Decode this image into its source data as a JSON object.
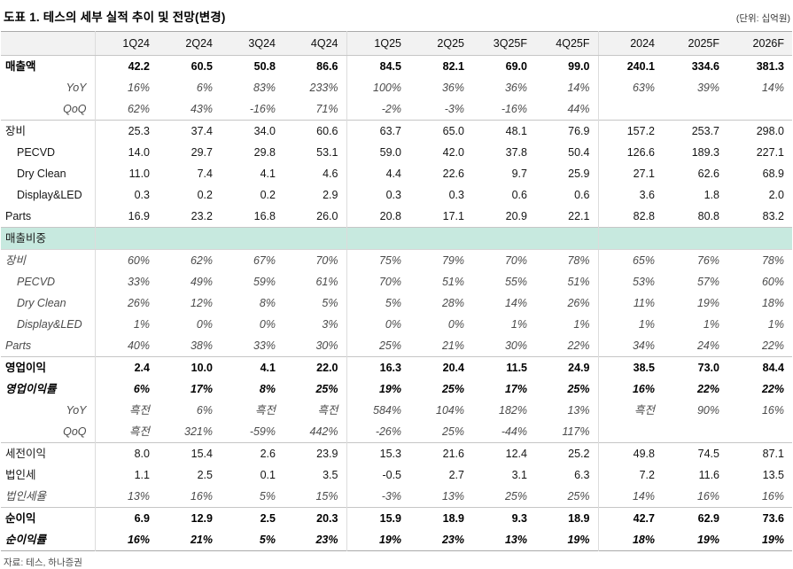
{
  "title": "도표 1. 테스의 세부 실적 추이 및 전망(변경)",
  "unit_note": "(단위: 십억원)",
  "source": "자료: 테스, 하나증권",
  "colors": {
    "section_band": "#c7e9df",
    "header_bg": "#f2f2f2"
  },
  "table": {
    "columns": [
      "1Q24",
      "2Q24",
      "3Q24",
      "4Q24",
      "1Q25",
      "2Q25",
      "3Q25F",
      "4Q25F",
      "2024",
      "2025F",
      "2026F"
    ],
    "rows": [
      {
        "name": "revenue",
        "label": "매출액",
        "kind": "main-bold",
        "section_start": false,
        "values": [
          "42.2",
          "60.5",
          "50.8",
          "86.6",
          "84.5",
          "82.1",
          "69.0",
          "99.0",
          "240.1",
          "334.6",
          "381.3"
        ]
      },
      {
        "name": "revenue-yoy",
        "label": "YoY",
        "kind": "growth",
        "section_start": false,
        "values": [
          "16%",
          "6%",
          "83%",
          "233%",
          "100%",
          "36%",
          "36%",
          "14%",
          "63%",
          "39%",
          "14%"
        ]
      },
      {
        "name": "revenue-qoq",
        "label": "QoQ",
        "kind": "growth",
        "section_start": false,
        "values": [
          "62%",
          "43%",
          "-16%",
          "71%",
          "-2%",
          "-3%",
          "-16%",
          "44%",
          "",
          "",
          ""
        ]
      },
      {
        "name": "equipment",
        "label": "장비",
        "kind": "plain",
        "section_start": true,
        "values": [
          "25.3",
          "37.4",
          "34.0",
          "60.6",
          "63.7",
          "65.0",
          "48.1",
          "76.9",
          "157.2",
          "253.7",
          "298.0"
        ]
      },
      {
        "name": "pecvd",
        "label": "PECVD",
        "kind": "plain-indent",
        "section_start": false,
        "values": [
          "14.0",
          "29.7",
          "29.8",
          "53.1",
          "59.0",
          "42.0",
          "37.8",
          "50.4",
          "126.6",
          "189.3",
          "227.1"
        ]
      },
      {
        "name": "dry-clean",
        "label": "Dry Clean",
        "kind": "plain-indent",
        "section_start": false,
        "values": [
          "11.0",
          "7.4",
          "4.1",
          "4.6",
          "4.4",
          "22.6",
          "9.7",
          "25.9",
          "27.1",
          "62.6",
          "68.9"
        ]
      },
      {
        "name": "display-led",
        "label": "Display&LED",
        "kind": "plain-indent",
        "section_start": false,
        "values": [
          "0.3",
          "0.2",
          "0.2",
          "2.9",
          "0.3",
          "0.3",
          "0.6",
          "0.6",
          "3.6",
          "1.8",
          "2.0"
        ]
      },
      {
        "name": "parts",
        "label": "Parts",
        "kind": "plain",
        "section_start": false,
        "values": [
          "16.9",
          "23.2",
          "16.8",
          "26.0",
          "20.8",
          "17.1",
          "20.9",
          "22.1",
          "82.8",
          "80.8",
          "83.2"
        ]
      },
      {
        "name": "sales-mix-section",
        "label": "매출비중",
        "kind": "section",
        "section_start": true,
        "values": [
          "",
          "",
          "",
          "",
          "",
          "",
          "",
          "",
          "",
          "",
          ""
        ]
      },
      {
        "name": "mix-equipment",
        "label": "장비",
        "kind": "pct",
        "section_start": false,
        "values": [
          "60%",
          "62%",
          "67%",
          "70%",
          "75%",
          "79%",
          "70%",
          "78%",
          "65%",
          "76%",
          "78%"
        ]
      },
      {
        "name": "mix-pecvd",
        "label": "PECVD",
        "kind": "pct-indent",
        "section_start": false,
        "values": [
          "33%",
          "49%",
          "59%",
          "61%",
          "70%",
          "51%",
          "55%",
          "51%",
          "53%",
          "57%",
          "60%"
        ]
      },
      {
        "name": "mix-dry-clean",
        "label": "Dry Clean",
        "kind": "pct-indent",
        "section_start": false,
        "values": [
          "26%",
          "12%",
          "8%",
          "5%",
          "5%",
          "28%",
          "14%",
          "26%",
          "11%",
          "19%",
          "18%"
        ]
      },
      {
        "name": "mix-display-led",
        "label": "Display&LED",
        "kind": "pct-indent",
        "section_start": false,
        "values": [
          "1%",
          "0%",
          "0%",
          "3%",
          "0%",
          "0%",
          "1%",
          "1%",
          "1%",
          "1%",
          "1%"
        ]
      },
      {
        "name": "mix-parts",
        "label": "Parts",
        "kind": "pct",
        "section_start": false,
        "values": [
          "40%",
          "38%",
          "33%",
          "30%",
          "25%",
          "21%",
          "30%",
          "22%",
          "34%",
          "24%",
          "22%"
        ]
      },
      {
        "name": "operating-profit",
        "label": "영업이익",
        "kind": "main-bold",
        "section_start": true,
        "values": [
          "2.4",
          "10.0",
          "4.1",
          "22.0",
          "16.3",
          "20.4",
          "11.5",
          "24.9",
          "38.5",
          "73.0",
          "84.4"
        ]
      },
      {
        "name": "operating-margin",
        "label": "영업이익률",
        "kind": "ratio-bold",
        "section_start": false,
        "values": [
          "6%",
          "17%",
          "8%",
          "25%",
          "19%",
          "25%",
          "17%",
          "25%",
          "16%",
          "22%",
          "22%"
        ]
      },
      {
        "name": "op-yoy",
        "label": "YoY",
        "kind": "growth",
        "section_start": false,
        "values": [
          "흑전",
          "6%",
          "흑전",
          "흑전",
          "584%",
          "104%",
          "182%",
          "13%",
          "흑전",
          "90%",
          "16%"
        ]
      },
      {
        "name": "op-qoq",
        "label": "QoQ",
        "kind": "growth",
        "section_start": false,
        "values": [
          "흑전",
          "321%",
          "-59%",
          "442%",
          "-26%",
          "25%",
          "-44%",
          "117%",
          "",
          "",
          ""
        ]
      },
      {
        "name": "pretax-profit",
        "label": "세전이익",
        "kind": "plain",
        "section_start": true,
        "values": [
          "8.0",
          "15.4",
          "2.6",
          "23.9",
          "15.3",
          "21.6",
          "12.4",
          "25.2",
          "49.8",
          "74.5",
          "87.1"
        ]
      },
      {
        "name": "income-tax",
        "label": "법인세",
        "kind": "plain",
        "section_start": false,
        "values": [
          "1.1",
          "2.5",
          "0.1",
          "3.5",
          "-0.5",
          "2.7",
          "3.1",
          "6.3",
          "7.2",
          "11.6",
          "13.5"
        ]
      },
      {
        "name": "tax-rate",
        "label": "법인세율",
        "kind": "pct",
        "section_start": false,
        "values": [
          "13%",
          "16%",
          "5%",
          "15%",
          "-3%",
          "13%",
          "25%",
          "25%",
          "14%",
          "16%",
          "16%"
        ]
      },
      {
        "name": "net-profit",
        "label": "순이익",
        "kind": "main-bold",
        "section_start": true,
        "values": [
          "6.9",
          "12.9",
          "2.5",
          "20.3",
          "15.9",
          "18.9",
          "9.3",
          "18.9",
          "42.7",
          "62.9",
          "73.6"
        ]
      },
      {
        "name": "net-margin",
        "label": "순이익률",
        "kind": "ratio-bold",
        "section_start": false,
        "values": [
          "16%",
          "21%",
          "5%",
          "23%",
          "19%",
          "23%",
          "13%",
          "19%",
          "18%",
          "19%",
          "19%"
        ]
      }
    ]
  }
}
